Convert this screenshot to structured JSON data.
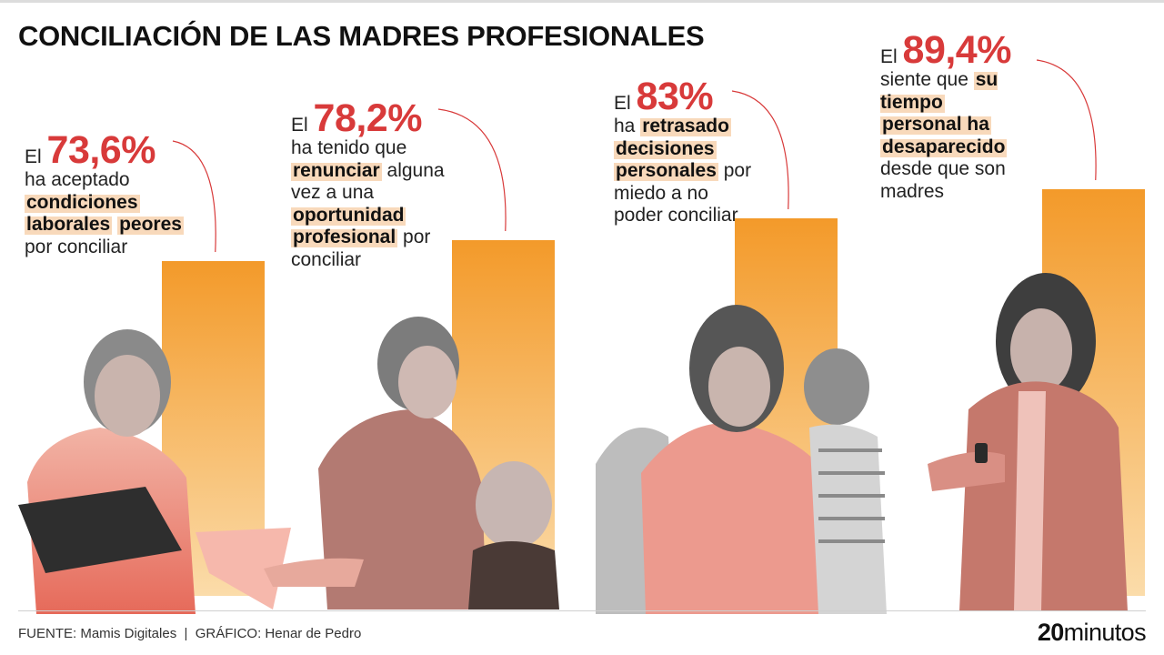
{
  "title": "CONCILIACIÓN DE LAS MADRES PROFESIONALES",
  "stats": [
    {
      "prefix": "El",
      "value_label": "73,6%",
      "text": [
        "ha aceptado ",
        "[condiciones]",
        " ",
        "[laborales]",
        " ",
        "[peores]",
        " por conciliar"
      ]
    },
    {
      "prefix": "El",
      "value_label": "78,2%",
      "text": [
        "ha tenido que ",
        "[renunciar]",
        " alguna vez a una ",
        "[oportunidad]",
        " ",
        "[profesional]",
        " por conciliar"
      ]
    },
    {
      "prefix": "El",
      "value_label": "83%",
      "text": [
        "ha ",
        "[retrasado]",
        " ",
        "[decisiones]",
        " ",
        "[personales]",
        " por miedo a no poder conciliar"
      ]
    },
    {
      "prefix": "El",
      "value_label": "89,4%",
      "text": [
        "siente que ",
        "[su tiempo]",
        " ",
        "[personal ha]",
        " ",
        "[desaparecido]",
        " desde que son madres"
      ]
    }
  ],
  "chart_data": {
    "type": "bar",
    "categories": [
      "ha aceptado condiciones laborales peores por conciliar",
      "ha tenido que renunciar alguna vez a una oportunidad profesional por conciliar",
      "ha retrasado decisiones personales por miedo a no poder conciliar",
      "siente que su tiempo personal ha desaparecido desde que son madres"
    ],
    "values": [
      73.6,
      78.2,
      83,
      89.4
    ],
    "unit": "%",
    "ylim": [
      0,
      100
    ],
    "bar_gradient": [
      "#f39a2a",
      "#fbdcaa"
    ],
    "highlight_color": "#d83a3a"
  },
  "illustrations": [
    {
      "name": "mother-with-clipboard-photo"
    },
    {
      "name": "mother-on-phone-with-baby-photo"
    },
    {
      "name": "mother-thinking-with-child-photo"
    },
    {
      "name": "mother-checking-watch-photo"
    }
  ],
  "footer": {
    "source": "FUENTE: Mamis Digitales  |  GRÁFICO: Henar de Pedro",
    "brand_number": "20",
    "brand_word": "minutos"
  }
}
